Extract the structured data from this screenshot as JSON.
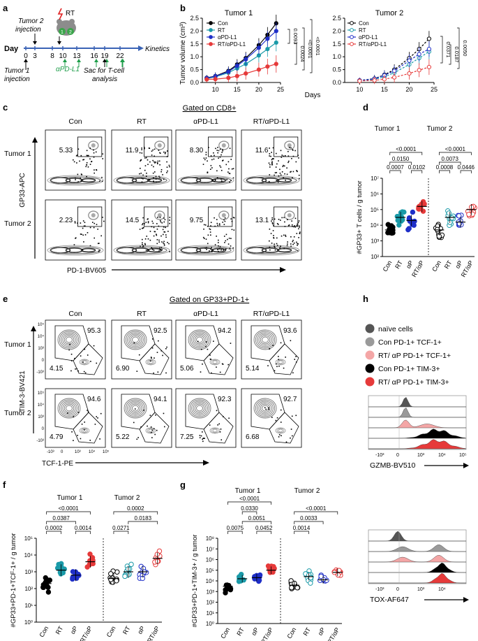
{
  "panel_letters": {
    "a": "a",
    "b": "b",
    "c": "c",
    "d": "d",
    "e": "e",
    "f": "f",
    "g": "g",
    "h": "h"
  },
  "panel_a": {
    "tumor2_injection": [
      "Tumor 2",
      "injection"
    ],
    "rt_label": "RT",
    "day_label": "Day",
    "days": [
      "0",
      "3",
      "8",
      "10",
      "13",
      "16",
      "19",
      "22"
    ],
    "kinetics": "Kinetics",
    "tumor1_injection": [
      "Tumor 1",
      "injection"
    ],
    "apdl1": "αPD-L1",
    "sac": [
      "Sac for T-cell",
      "analysis"
    ],
    "mouse_numbers": [
      "1",
      "2"
    ]
  },
  "colors": {
    "con": "#000000",
    "rt": "#1a9aa8",
    "apdl1": "#1f2fc8",
    "rtapdl1": "#e63a3a",
    "green": "#1e9e4a",
    "blue_axis": "#3a63b5",
    "naive": "#555555",
    "con_tcf": "#9a9a9a",
    "rt_tcf": "#f4a6a6"
  },
  "chart_data": [
    {
      "id": "b-tumor1",
      "type": "line",
      "title": "Tumor 1",
      "ylabel": "Tumor volume (cm³)",
      "xlabel": "Days",
      "x": [
        8,
        10,
        13,
        15,
        17,
        20,
        22,
        24
      ],
      "xlim": [
        7,
        25
      ],
      "ylim": [
        0,
        2.5
      ],
      "xticks": [
        "10",
        "15",
        "20",
        "25"
      ],
      "yticks": [
        "0.0",
        "0.5",
        "1.0",
        "1.5",
        "2.0",
        "2.5"
      ],
      "series": [
        {
          "name": "Con",
          "values": [
            0.18,
            0.25,
            0.45,
            0.7,
            0.95,
            1.45,
            1.85,
            2.3
          ]
        },
        {
          "name": "RT",
          "values": [
            0.15,
            0.22,
            0.38,
            0.55,
            0.72,
            1.05,
            1.3,
            1.55
          ]
        },
        {
          "name": "αPD-L1",
          "values": [
            0.17,
            0.24,
            0.42,
            0.65,
            0.9,
            1.35,
            1.7,
            2.0
          ]
        },
        {
          "name": "RT/αPD-L1",
          "values": [
            0.12,
            0.13,
            0.18,
            0.25,
            0.35,
            0.5,
            0.62,
            0.72
          ]
        }
      ],
      "pvalues": [
        "0.0093",
        "0.0024",
        "<0.0001",
        "<0.0001"
      ]
    },
    {
      "id": "b-tumor2",
      "type": "line",
      "title": "Tumor 2",
      "x": [
        10,
        13,
        15,
        17,
        20,
        22,
        24
      ],
      "xlim": [
        7,
        25
      ],
      "ylim": [
        0,
        2.5
      ],
      "xticks": [
        "10",
        "15",
        "20",
        "25"
      ],
      "yticks": [
        "0.0",
        "0.5",
        "1.0",
        "1.5",
        "2.0",
        "2.5"
      ],
      "series": [
        {
          "name": "Con",
          "values": [
            0.08,
            0.15,
            0.3,
            0.5,
            0.95,
            1.3,
            1.7
          ]
        },
        {
          "name": "RT",
          "values": [
            0.07,
            0.12,
            0.22,
            0.38,
            0.7,
            0.95,
            1.2
          ]
        },
        {
          "name": "αPD-L1",
          "values": [
            0.08,
            0.14,
            0.28,
            0.45,
            0.85,
            1.1,
            1.3
          ]
        },
        {
          "name": "RT/αPD-L1",
          "values": [
            0.06,
            0.08,
            0.13,
            0.2,
            0.35,
            0.48,
            0.6
          ]
        }
      ],
      "pvalues": [
        "0.0371",
        "0.0187",
        "0.0050"
      ]
    },
    {
      "id": "d-scatter",
      "type": "scatter",
      "ylabel": "#GP33+ T cells / g tumor",
      "groups": [
        "Tumor 1",
        "Tumor 2"
      ],
      "categories": [
        "Con",
        "RT",
        "αP",
        "RT/αP",
        "Con",
        "RT",
        "αP",
        "RT/αP"
      ],
      "ylim_log10": [
        2,
        7
      ],
      "yticks": [
        "10²",
        "10³",
        "10⁴",
        "10⁵",
        "10⁶",
        "10⁷"
      ],
      "medians_log10": [
        3.7,
        4.5,
        4.3,
        5.2,
        3.7,
        4.5,
        4.2,
        5.0
      ],
      "pvalues_tumor1": [
        "0.0007",
        "0.0150",
        "0.0102",
        "<0.0001"
      ],
      "pvalues_tumor2": [
        "0.0008",
        "0.0073",
        "0.0446",
        "<0.0001"
      ]
    },
    {
      "id": "f-scatter",
      "type": "scatter",
      "ylabel": "#GP33+PD-1+TCF-1+ / g tumor",
      "groups": [
        "Tumor 1",
        "Tumor 2"
      ],
      "categories": [
        "Con",
        "RT",
        "αP",
        "RT/αP",
        "Con",
        "RT",
        "αP",
        "RT/αP"
      ],
      "ylim_log10": [
        0,
        5
      ],
      "yticks": [
        "10⁰",
        "10¹",
        "10²",
        "10³",
        "10⁴",
        "10⁵"
      ],
      "medians_log10": [
        2.3,
        3.1,
        2.8,
        3.6,
        2.6,
        3.0,
        3.0,
        3.8
      ],
      "pvalues_tumor1": [
        "0.0002",
        "0.0387",
        "0.0014",
        "<0.0001"
      ],
      "pvalues_tumor2": [
        "0.0271",
        "0.0183",
        "0.0002"
      ]
    },
    {
      "id": "g-scatter",
      "type": "scatter",
      "ylabel": "#GP33+PD-1+TIM-3+ / g tumor",
      "groups": [
        "Tumor 1",
        "Tumor 2"
      ],
      "categories": [
        "Con",
        "RT",
        "αP",
        "RT/αP",
        "Con",
        "RT",
        "αP",
        "RT/αP"
      ],
      "ylim_log10": [
        0,
        8
      ],
      "yticks": [
        "10⁰",
        "10¹",
        "10²",
        "10³",
        "10⁴",
        "10⁵",
        "10⁶",
        "10⁷",
        "10⁸"
      ],
      "medians_log10": [
        3.5,
        4.2,
        4.3,
        5.0,
        3.6,
        4.4,
        4.1,
        4.8
      ],
      "pvalues_tumor1": [
        "0.0075",
        "0.0051",
        "0.0452",
        "0.0330",
        "<0.0001"
      ],
      "pvalues_tumor2": [
        "0.0014",
        "0.0033",
        "<0.0001"
      ]
    }
  ],
  "legend_b": [
    "Con",
    "RT",
    "αPD-L1",
    "RT/αPD-L1"
  ],
  "legend_b2": [
    "Con",
    "RT",
    "αPD-L1",
    "RT/αPD-L1"
  ],
  "panel_c": {
    "gate_title": "Gated on CD8+",
    "cols": [
      "Con",
      "RT",
      "αPD-L1",
      "RT/αPD-L1"
    ],
    "rows": [
      "Tumor 1",
      "Tumor 2"
    ],
    "yaxis": "GP33-APC",
    "xaxis": "PD-1-BV605",
    "values": [
      [
        "5.33",
        "11.9",
        "8.30",
        "11.6"
      ],
      [
        "2.23",
        "14.5",
        "9.75",
        "13.1"
      ]
    ]
  },
  "panel_d": {
    "tumor1": "Tumor 1",
    "tumor2": "Tumor 2"
  },
  "panel_e": {
    "gate_title": "Gated on GP33+PD-1+",
    "cols": [
      "Con",
      "RT",
      "αPD-L1",
      "RT/αPD-L1"
    ],
    "rows": [
      "Tumor 1",
      "Tumor 2"
    ],
    "yaxis": "TIM-3-BV421",
    "xaxis": "TCF-1-PE",
    "upper": [
      [
        "95.3",
        "92.5",
        "94.2",
        "93.6"
      ],
      [
        "94.6",
        "94.1",
        "92.3",
        "92.7"
      ]
    ],
    "lower": [
      [
        "4.15",
        "6.90",
        "5.06",
        "5.14"
      ],
      [
        "4.79",
        "5.22",
        "7.25",
        "6.68"
      ]
    ],
    "yticks": [
      "10⁵",
      "10⁴",
      "10³",
      "0",
      "-10³"
    ],
    "xticks": [
      "-10³",
      "0",
      "10³",
      "10⁴",
      "10⁵"
    ]
  },
  "panel_h": {
    "legend": [
      "naïve cells",
      "Con PD-1+ TCF-1+",
      "RT/ αP PD-1+ TCF-1+",
      "Con PD-1+ TIM-3+",
      "RT/ αP PD-1+ TIM-3+"
    ],
    "hist1_label": "GZMB-BV510",
    "hist2_label": "TOX-AF647",
    "ticks1": [
      "-10³",
      "0",
      "10³",
      "10⁴",
      "10⁵"
    ],
    "ticks2": [
      "-10³",
      "0",
      "10³",
      "10⁴"
    ]
  },
  "days_label": "Days"
}
